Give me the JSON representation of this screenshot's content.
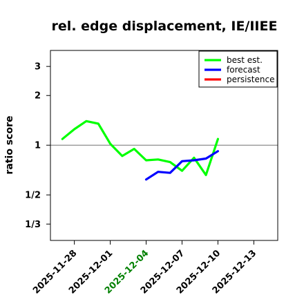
{
  "chart_data": {
    "type": "line",
    "title": "rel. edge displacement, IE/IIEE",
    "ylabel": "ratio score",
    "xlabel": "",
    "y_scale": "log",
    "ylim": [
      0.265,
      3.75
    ],
    "xlim": [
      "2025-11-26",
      "2025-12-15"
    ],
    "y_ticks": [
      {
        "value": 3,
        "label": "3"
      },
      {
        "value": 2,
        "label": "2"
      },
      {
        "value": 1,
        "label": "1"
      },
      {
        "value": 0.5,
        "label": "1/2"
      },
      {
        "value": 0.333,
        "label": "1/3"
      }
    ],
    "x_ticks": [
      {
        "date": "2025-11-28",
        "label": "2025-11-28",
        "color": "#000000"
      },
      {
        "date": "2025-12-01",
        "label": "2025-12-01",
        "color": "#000000"
      },
      {
        "date": "2025-12-04",
        "label": "2025-12-04",
        "color": "#008000"
      },
      {
        "date": "2025-12-07",
        "label": "2025-12-07",
        "color": "#000000"
      },
      {
        "date": "2025-12-10",
        "label": "2025-12-10",
        "color": "#000000"
      },
      {
        "date": "2025-12-13",
        "label": "2025-12-13",
        "color": "#000000"
      }
    ],
    "reference_line": 1,
    "legend_position": "top-right",
    "series": [
      {
        "name": "best est.",
        "color": "#00ff00",
        "x": [
          "2025-11-27",
          "2025-11-28",
          "2025-11-29",
          "2025-11-30",
          "2025-12-01",
          "2025-12-02",
          "2025-12-03",
          "2025-12-04",
          "2025-12-05",
          "2025-12-06",
          "2025-12-07",
          "2025-12-08",
          "2025-12-09",
          "2025-12-10"
        ],
        "y": [
          1.09,
          1.25,
          1.4,
          1.35,
          1.02,
          0.86,
          0.95,
          0.81,
          0.82,
          0.79,
          0.7,
          0.84,
          0.66,
          1.09
        ]
      },
      {
        "name": "forecast",
        "color": "#0000ff",
        "x": [
          "2025-12-04",
          "2025-12-05",
          "2025-12-06",
          "2025-12-07",
          "2025-12-08",
          "2025-12-09",
          "2025-12-10"
        ],
        "y": [
          0.62,
          0.69,
          0.68,
          0.8,
          0.81,
          0.83,
          0.92
        ]
      },
      {
        "name": "persistence",
        "color": "#ff0000",
        "x": [],
        "y": []
      }
    ]
  }
}
